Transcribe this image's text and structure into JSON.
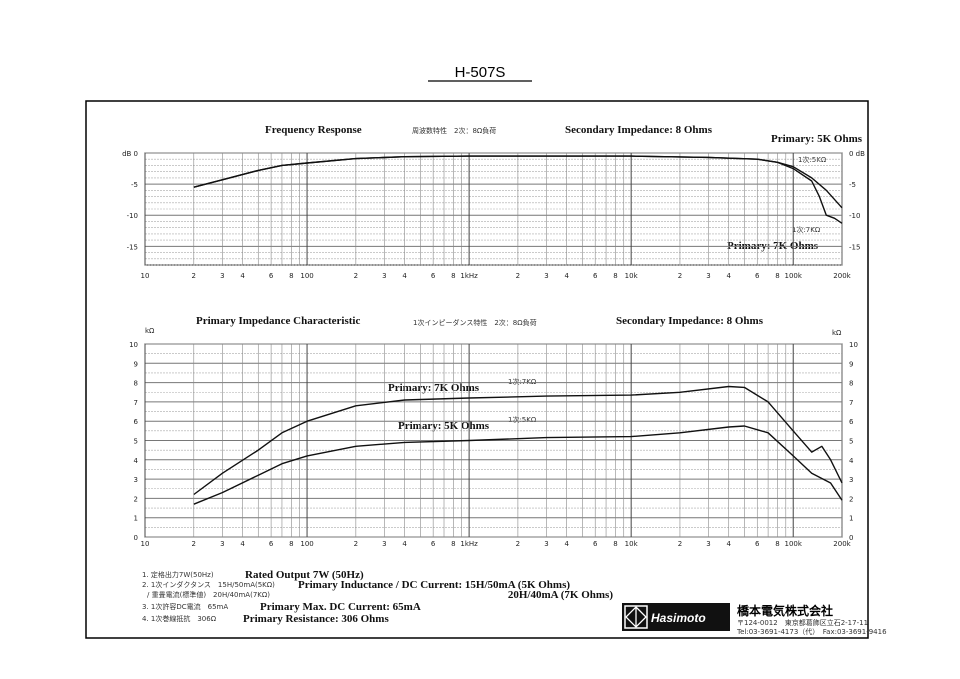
{
  "title": "H-507S",
  "chart_data": [
    {
      "type": "line",
      "title": "Frequency Response",
      "title_jp": "周波数特性　2次：8Ω負荷",
      "subtitle": "Secondary Impedance: 8 Ohms",
      "ylabel_left": "dB",
      "ylabel_right": "dB",
      "xscale": "log",
      "xlim": [
        10,
        200000
      ],
      "ylim": [
        -18,
        0
      ],
      "yticks": [
        0,
        -5,
        -10,
        -15
      ],
      "ytick_labels_left": [
        "dB 0",
        "-5",
        "-10",
        "-15"
      ],
      "ytick_labels_right": [
        "0 dB",
        "-5",
        "-10",
        "-15"
      ],
      "xticks": [
        10,
        20,
        30,
        40,
        60,
        80,
        100,
        200,
        300,
        400,
        600,
        800,
        1000,
        2000,
        3000,
        4000,
        6000,
        8000,
        10000,
        20000,
        30000,
        40000,
        60000,
        80000,
        100000,
        200000
      ],
      "xtick_labels": [
        "10",
        "2",
        "3",
        "4",
        "6",
        "8",
        "100",
        "2",
        "3",
        "4",
        "6",
        "8",
        "1kHz",
        "2",
        "3",
        "4",
        "6",
        "8",
        "10k",
        "2",
        "3",
        "4",
        "6",
        "8",
        "100k",
        "200k"
      ],
      "grid": true,
      "series": [
        {
          "name": "Primary: 5K Ohms",
          "label_jp": "1次:5KΩ",
          "x": [
            20,
            30,
            50,
            70,
            100,
            200,
            400,
            1000,
            10000,
            30000,
            60000,
            80000,
            100000,
            130000,
            160000,
            200000
          ],
          "y": [
            -5.5,
            -4.3,
            -2.8,
            -2.0,
            -1.6,
            -0.9,
            -0.6,
            -0.5,
            -0.5,
            -0.7,
            -1.0,
            -1.5,
            -2.2,
            -4,
            -6,
            -8.8
          ]
        },
        {
          "name": "Primary: 7K Ohms",
          "label_jp": "1次:7KΩ",
          "x": [
            20,
            30,
            50,
            70,
            100,
            200,
            400,
            1000,
            10000,
            30000,
            60000,
            80000,
            100000,
            130000,
            145000,
            160000,
            180000,
            200000
          ],
          "y": [
            -5.5,
            -4.3,
            -2.8,
            -2.0,
            -1.6,
            -0.9,
            -0.6,
            -0.5,
            -0.5,
            -0.7,
            -1.0,
            -1.5,
            -2.5,
            -4.5,
            -7,
            -10,
            -10.5,
            -11.3
          ]
        }
      ]
    },
    {
      "type": "line",
      "title": "Primary Impedance Characteristic",
      "title_jp": "1次インピーダンス特性　2次：8Ω負荷",
      "subtitle": "Secondary Impedance: 8 Ohms",
      "ylabel_left": "kΩ",
      "ylabel_right": "kΩ",
      "xscale": "log",
      "xlim": [
        10,
        200000
      ],
      "ylim": [
        0,
        10
      ],
      "yticks": [
        0,
        1,
        2,
        3,
        4,
        5,
        6,
        7,
        8,
        9,
        10
      ],
      "xticks": [
        10,
        20,
        30,
        40,
        60,
        80,
        100,
        200,
        300,
        400,
        600,
        800,
        1000,
        2000,
        3000,
        4000,
        6000,
        8000,
        10000,
        20000,
        30000,
        40000,
        60000,
        80000,
        100000,
        200000
      ],
      "xtick_labels": [
        "10",
        "2",
        "3",
        "4",
        "6",
        "8",
        "100",
        "2",
        "3",
        "4",
        "6",
        "8",
        "1kHz",
        "2",
        "3",
        "4",
        "6",
        "8",
        "10k",
        "2",
        "3",
        "4",
        "6",
        "8",
        "100k",
        "200k"
      ],
      "grid": true,
      "series": [
        {
          "name": "Primary: 7K Ohms",
          "label_jp": "1次:7KΩ",
          "x": [
            20,
            30,
            50,
            70,
            100,
            200,
            400,
            1000,
            3000,
            10000,
            20000,
            40000,
            50000,
            70000,
            100000,
            130000,
            150000,
            170000,
            200000
          ],
          "y": [
            2.2,
            3.3,
            4.5,
            5.4,
            6.0,
            6.8,
            7.1,
            7.2,
            7.3,
            7.35,
            7.5,
            7.8,
            7.75,
            7.0,
            5.5,
            4.4,
            4.7,
            4.0,
            2.8
          ]
        },
        {
          "name": "Primary: 5K Ohms",
          "label_jp": "1次:5KΩ",
          "x": [
            20,
            30,
            50,
            70,
            100,
            200,
            400,
            1000,
            3000,
            10000,
            20000,
            40000,
            50000,
            70000,
            100000,
            130000,
            170000,
            200000
          ],
          "y": [
            1.7,
            2.3,
            3.2,
            3.8,
            4.2,
            4.7,
            4.9,
            5.0,
            5.15,
            5.2,
            5.4,
            5.7,
            5.75,
            5.4,
            4.2,
            3.3,
            2.8,
            1.9
          ]
        }
      ]
    }
  ],
  "specs": [
    {
      "jp": "1. 定格出力7W(50Hz)",
      "en": "Rated Output 7W (50Hz)"
    },
    {
      "jp": "2. 1次インダクタンス　15H/50mA(5KΩ)",
      "en": "Primary Inductance / DC Current: 15H/50mA (5K Ohms)"
    },
    {
      "jp": "/ 重畳電流(標準値)　20H/40mA(7KΩ)",
      "en": "20H/40mA (7K Ohms)"
    },
    {
      "jp": "3. 1次許容DC電流　65mA",
      "en": "Primary Max. DC Current: 65mA"
    },
    {
      "jp": "4. 1次巻線抵抗　306Ω",
      "en": "Primary Resistance: 306 Ohms"
    }
  ],
  "company": {
    "logo": "Hasimoto",
    "name": "橋本電気株式会社",
    "address": "〒124-0012　東京都葛飾区立石2-17-11",
    "phone": "Tel:03-3691-4173（代）　Fax:03-3691-9416"
  }
}
